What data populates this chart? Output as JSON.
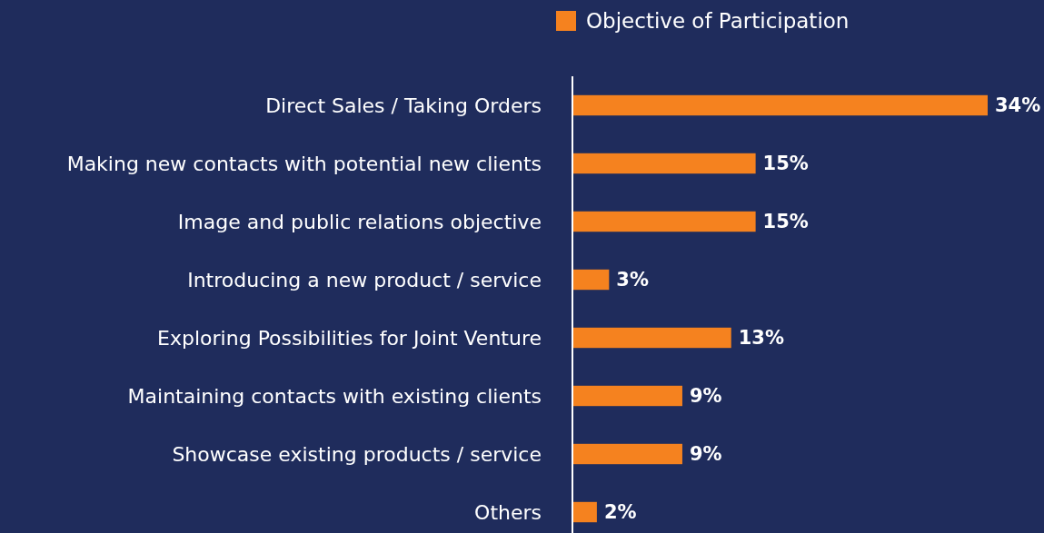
{
  "chart_data": {
    "type": "bar",
    "orientation": "horizontal",
    "categories": [
      "Direct Sales / Taking Orders",
      "Making new contacts with potential new clients",
      "Image and public relations objective",
      "Introducing a new product / service",
      "Exploring Possibilities for Joint Venture",
      "Maintaining contacts with existing clients",
      "Showcase existing products / service",
      "Others"
    ],
    "series": [
      {
        "name": "Objective of Participation",
        "color": "#f5821f",
        "values": [
          34,
          15,
          15,
          3,
          13,
          9,
          9,
          2
        ],
        "value_labels": [
          "34%",
          "15%",
          "15%",
          "3%",
          "13%",
          "9%",
          "9%",
          "2%"
        ]
      }
    ],
    "legend": "top"
  }
}
